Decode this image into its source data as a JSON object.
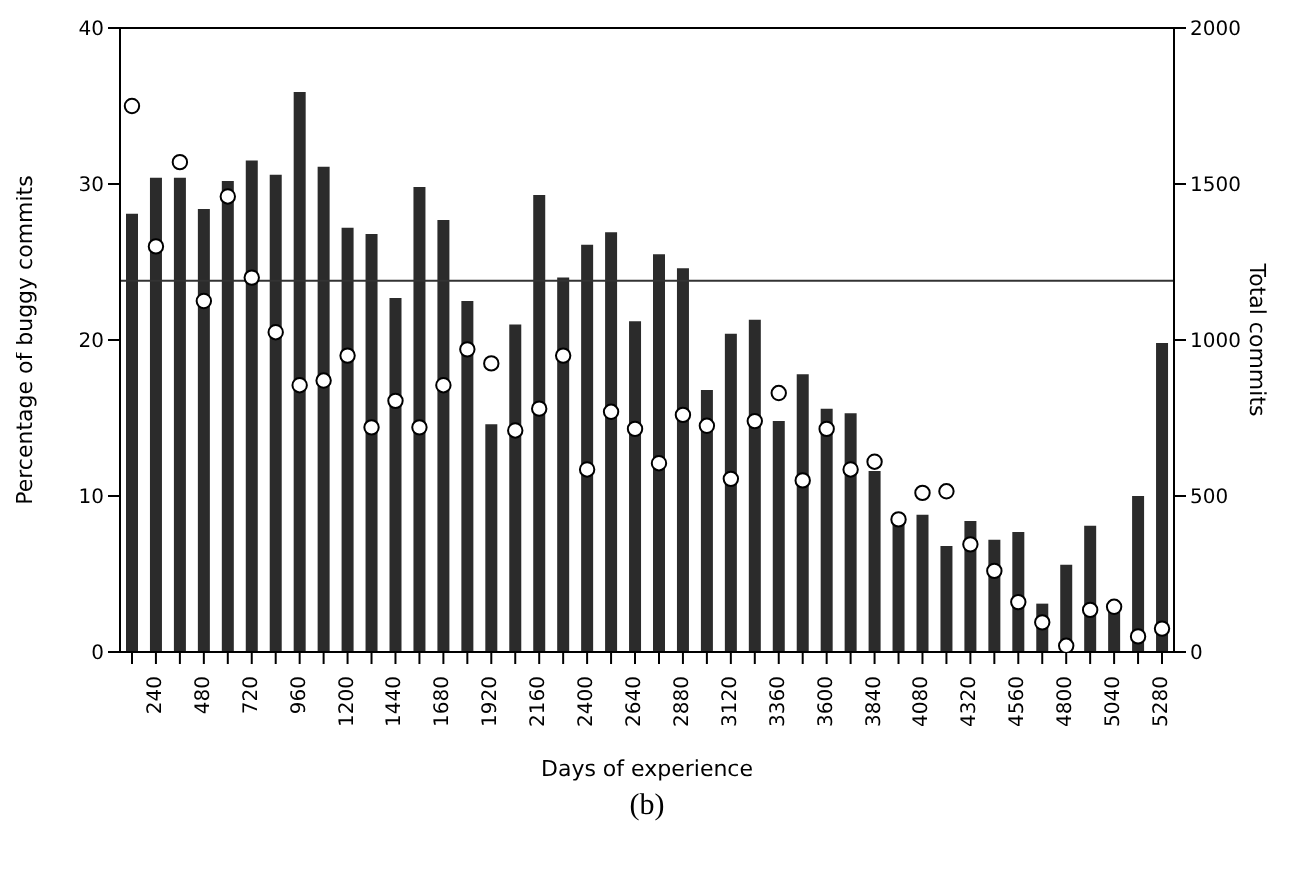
{
  "chart_data": {
    "type": "bar",
    "xlabel": "Days of experience",
    "ylabel": "Percentage of buggy commits",
    "y2label": "Total commits",
    "categories": [
      null,
      "240",
      null,
      "480",
      null,
      "720",
      null,
      "960",
      null,
      "1200",
      null,
      "1440",
      null,
      "1680",
      null,
      "1920",
      null,
      "2160",
      null,
      "2400",
      null,
      "2640",
      null,
      "2880",
      null,
      "3120",
      null,
      "3360",
      null,
      "3600",
      null,
      "3840",
      null,
      "4080",
      null,
      "4320",
      null,
      "4560",
      null,
      "4800",
      null,
      "5040",
      null,
      "5280"
    ],
    "series": [
      {
        "color": "#2b2b2b",
        "values": [
          28.1,
          30.4,
          30.4,
          28.4,
          30.2,
          31.5,
          30.6,
          35.9,
          31.1,
          27.2,
          26.8,
          22.7,
          29.8,
          27.7,
          22.5,
          14.6,
          21.0,
          29.3,
          24.0,
          26.1,
          26.9,
          21.2,
          25.5,
          24.6,
          16.8,
          20.4,
          21.3,
          14.8,
          17.8,
          15.6,
          15.3,
          11.6,
          8.2,
          8.8,
          6.8,
          8.4,
          7.2,
          7.7,
          3.1,
          5.6,
          8.1,
          2.6,
          10.0,
          19.8
        ]
      },
      {
        "type": "scatter",
        "axis": "y2",
        "color": "#ffffff",
        "marker": "circle",
        "values": [
          1750,
          1300,
          1570,
          1125,
          1460,
          1200,
          1025,
          855,
          870,
          950,
          720,
          805,
          720,
          855,
          970,
          925,
          710,
          780,
          950,
          585,
          770,
          715,
          605,
          760,
          725,
          555,
          740,
          830,
          550,
          715,
          585,
          610,
          425,
          510,
          515,
          345,
          260,
          160,
          95,
          20,
          135,
          145,
          50,
          75
        ]
      }
    ],
    "ylim": [
      0,
      40
    ],
    "yticks": [
      0,
      10,
      20,
      30,
      40
    ],
    "y2lim": [
      0,
      2000
    ],
    "y2ticks": [
      0,
      500,
      1000,
      1500,
      2000
    ],
    "ref_lines": [
      {
        "axis": "y",
        "value": 23.8,
        "color": "#333333"
      }
    ],
    "grid": false,
    "legend": false,
    "annotations": [
      "(b)"
    ]
  }
}
